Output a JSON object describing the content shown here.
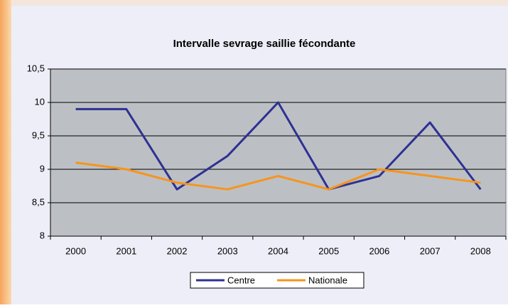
{
  "chart_data": {
    "type": "line",
    "title": "Intervalle sevrage saillie fécondante",
    "categories": [
      "2000",
      "2001",
      "2002",
      "2003",
      "2004",
      "2005",
      "2006",
      "2007",
      "2008"
    ],
    "series": [
      {
        "name": "Centre",
        "color": "#2e3192",
        "values": [
          9.9,
          9.9,
          8.7,
          9.2,
          10,
          8.7,
          8.9,
          9.7,
          8.7
        ]
      },
      {
        "name": "Nationale",
        "color": "#f7941d",
        "values": [
          9.1,
          9,
          8.8,
          8.7,
          8.9,
          8.7,
          9,
          8.9,
          8.8
        ]
      }
    ],
    "ylim": [
      8,
      10.5
    ],
    "yticks": [
      8,
      {
        "value": 8.5,
        "label": "8,5"
      },
      9,
      {
        "value": 9.5,
        "label": "9,5"
      },
      10,
      {
        "value": 10.5,
        "label": "10,5"
      }
    ],
    "grid": true,
    "legend": "bottom"
  }
}
